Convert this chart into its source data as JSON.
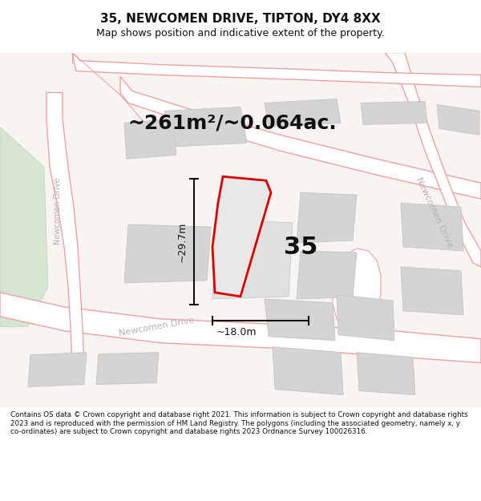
{
  "title": "35, NEWCOMEN DRIVE, TIPTON, DY4 8XX",
  "subtitle": "Map shows position and indicative extent of the property.",
  "area_label": "~261m²/~0.064ac.",
  "number_label": "35",
  "dim_height_label": "~29.7m",
  "dim_width_label": "~18.0m",
  "footer": "Contains OS data © Crown copyright and database right 2021. This information is subject to Crown copyright and database rights 2023 and is reproduced with the permission of HM Land Registry. The polygons (including the associated geometry, namely x, y co-ordinates) are subject to Crown copyright and database rights 2023 Ordnance Survey 100026316.",
  "bg_color": "#f0ebe8",
  "map_white": "#ffffff",
  "road_stroke": "#f0a8a8",
  "road_fill": "#ffffff",
  "building_fill": "#d4d4d4",
  "building_stroke": "#c8c8c8",
  "green_fill": "#d8e8d0",
  "plot_stroke": "#dd0000",
  "plot_fill": "#e8e8e8",
  "dim_color": "#111111",
  "title_color": "#111111",
  "footer_color": "#111111",
  "road_label_color": "#b8b0b0",
  "number_color": "#111111",
  "title_fontsize": 11,
  "subtitle_fontsize": 9,
  "area_fontsize": 18,
  "number_fontsize": 22,
  "dim_fontsize": 9,
  "footer_fontsize": 6.3,
  "road_label_fontsize": 8
}
